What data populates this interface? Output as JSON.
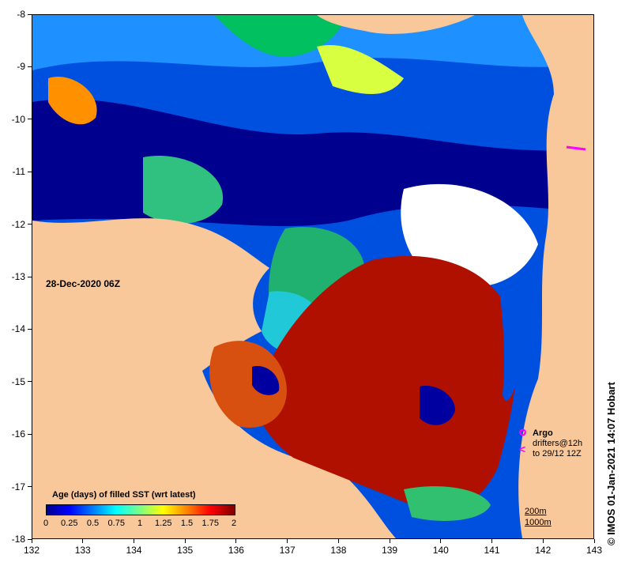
{
  "map": {
    "date": "28-Dec-2020 06Z",
    "x_ticks": [
      "132",
      "133",
      "134",
      "135",
      "136",
      "137",
      "138",
      "139",
      "140",
      "141",
      "142",
      "143"
    ],
    "y_ticks": [
      "-8",
      "-9",
      "-10",
      "-11",
      "-12",
      "-13",
      "-14",
      "-15",
      "-16",
      "-17",
      "-18"
    ],
    "colors": {
      "land": "#f9c89a",
      "no_data": "#ffffff"
    }
  },
  "legend": {
    "title": "Age (days) of filled SST (wrt latest)",
    "labels": [
      "0",
      "0.25",
      "0.5",
      "0.75",
      "1",
      "1.25",
      "1.5",
      "1.75",
      "2"
    ],
    "colors": [
      "#00008f",
      "#0000ff",
      "#0080ff",
      "#00ffff",
      "#80ff80",
      "#ffff00",
      "#ff8000",
      "#ff0000",
      "#800000"
    ]
  },
  "overlay_key": {
    "argo": "Argo",
    "drifters_line1": "drifters@12h",
    "drifters_line2": "to 29/12 12Z",
    "marker_color": "#ff00ff"
  },
  "depth_key": {
    "line1": "200m",
    "line2": "1000m"
  },
  "credit": "© IMOS 01-Jan-2021 14:07 Hobart"
}
